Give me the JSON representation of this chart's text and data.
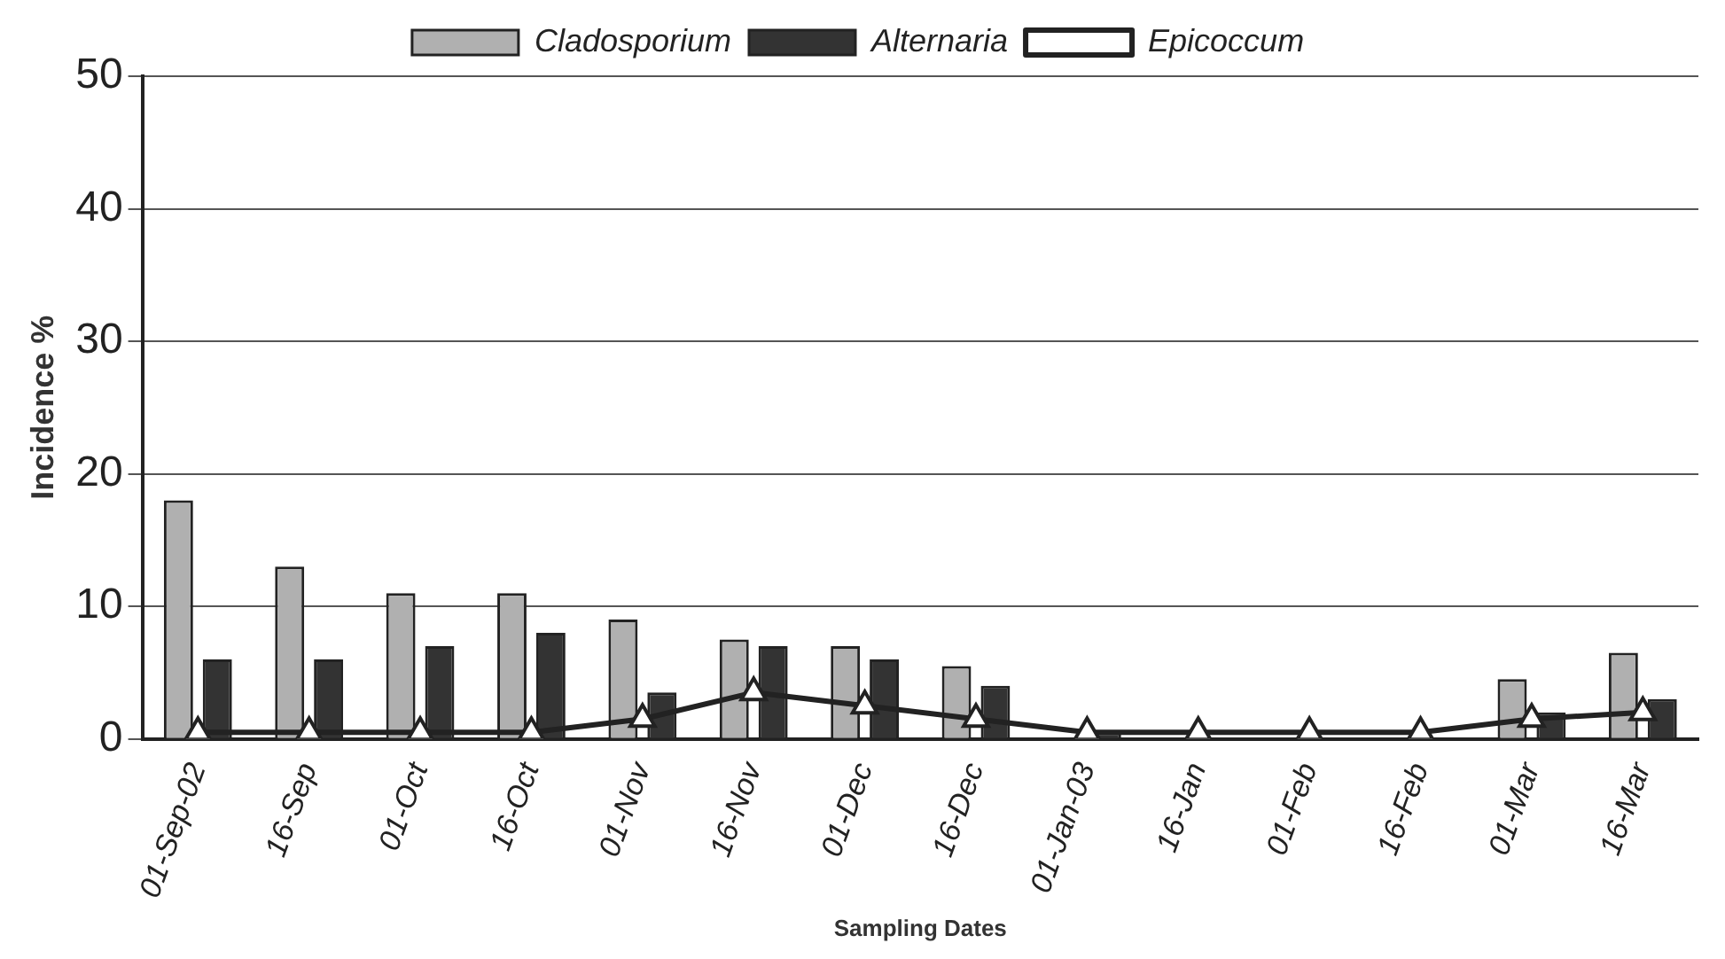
{
  "chart_data": {
    "type": "bar",
    "xlabel": "Sampling Dates",
    "ylabel": "Incidence %",
    "categories": [
      "01-Sep-02",
      "16-Sep",
      "01-Oct",
      "16-Oct",
      "01-Nov",
      "16-Nov",
      "01-Dec",
      "16-Dec",
      "01-Jan-03",
      "16-Jan",
      "01-Feb",
      "16-Feb",
      "01-Mar",
      "16-Mar"
    ],
    "series": [
      {
        "name": "Cladosporium",
        "color": "#b0b0b0",
        "values": [
          18,
          13,
          11,
          11,
          9,
          7.5,
          7,
          5.5,
          0,
          0,
          0,
          0,
          4.5,
          6.5
        ]
      },
      {
        "name": "Alternaria",
        "color": "#333333",
        "values": [
          6,
          6,
          7,
          8,
          3.5,
          7,
          6,
          4,
          0.5,
          0,
          0,
          0,
          2,
          3
        ]
      },
      {
        "name": "Epicoccum",
        "type": "line",
        "color": "#222222",
        "values": [
          0.5,
          0.5,
          0.5,
          0.5,
          1.5,
          3.5,
          2.5,
          1.5,
          0.5,
          0.5,
          0.5,
          0.5,
          1.5,
          2
        ]
      }
    ],
    "ylim": [
      0,
      50
    ],
    "yticks": [
      0,
      10,
      20,
      30,
      40,
      50
    ],
    "grid": "y",
    "legend": "top",
    "marker": "triangle"
  }
}
